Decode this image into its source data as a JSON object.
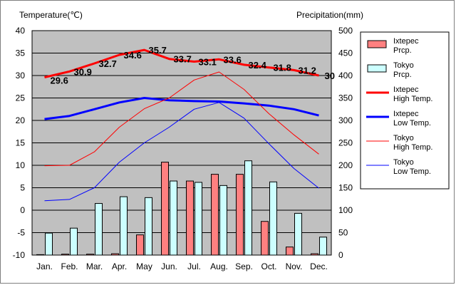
{
  "chart_data": {
    "type": "bar+line",
    "left_axis_title": "Temperature(℃)",
    "right_axis_title": "Precipitation(mm)",
    "categories": [
      "Jan.",
      "Feb.",
      "Mar.",
      "Apr.",
      "May",
      "Jun.",
      "Jul.",
      "Aug.",
      "Sep.",
      "Oct.",
      "Nov.",
      "Dec."
    ],
    "temp_ylim": [
      -10,
      40
    ],
    "temp_ticks": [
      "40",
      "35",
      "30",
      "25",
      "20",
      "15",
      "10",
      "5",
      "0",
      "-5",
      "-10"
    ],
    "precip_ylim": [
      0,
      500
    ],
    "precip_ticks": [
      "500",
      "450",
      "400",
      "350",
      "300",
      "250",
      "200",
      "150",
      "100",
      "50",
      "0"
    ],
    "grid": true,
    "legend_position": "right",
    "bar_series": [
      {
        "name": "Ixtepec\nPrcp.",
        "color": "#ff8080",
        "values": [
          1,
          2,
          2,
          3,
          45,
          207,
          165,
          180,
          180,
          75,
          18,
          3
        ]
      },
      {
        "name": "Tokyo\nPrcp.",
        "color": "#ccffff",
        "values": [
          49,
          60,
          115,
          130,
          128,
          165,
          162,
          155,
          210,
          163,
          93,
          40
        ]
      }
    ],
    "line_series": [
      {
        "name": "Ixtepec\nHigh Temp.",
        "color": "#ff0000",
        "width": 3,
        "values": [
          29.6,
          30.9,
          32.7,
          34.6,
          35.7,
          33.7,
          33.1,
          33.6,
          32.4,
          31.8,
          31.2,
          30.0
        ],
        "labels": [
          "29.6",
          "30.9",
          "32.7",
          "34.6",
          "35.7",
          "33.7",
          "33.1",
          "33.6",
          "32.4",
          "31.8",
          "31.2",
          "30"
        ]
      },
      {
        "name": "Ixtepec\nLow Temp.",
        "color": "#0000ff",
        "width": 3,
        "values": [
          20.3,
          21.0,
          22.5,
          24.0,
          25.0,
          24.5,
          24.3,
          24.2,
          23.8,
          23.3,
          22.5,
          21.1
        ]
      },
      {
        "name": "Tokyo\nHigh Temp.",
        "color": "#ff0000",
        "width": 1,
        "values": [
          9.9,
          10.0,
          13.0,
          18.5,
          22.6,
          25.0,
          29.0,
          30.8,
          26.9,
          21.5,
          16.8,
          12.5
        ]
      },
      {
        "name": "Tokyo\nLow Temp.",
        "color": "#0000ff",
        "width": 1,
        "values": [
          2.1,
          2.4,
          5.0,
          10.7,
          15.0,
          18.5,
          22.5,
          24.0,
          20.5,
          14.8,
          9.3,
          4.9
        ]
      }
    ]
  }
}
